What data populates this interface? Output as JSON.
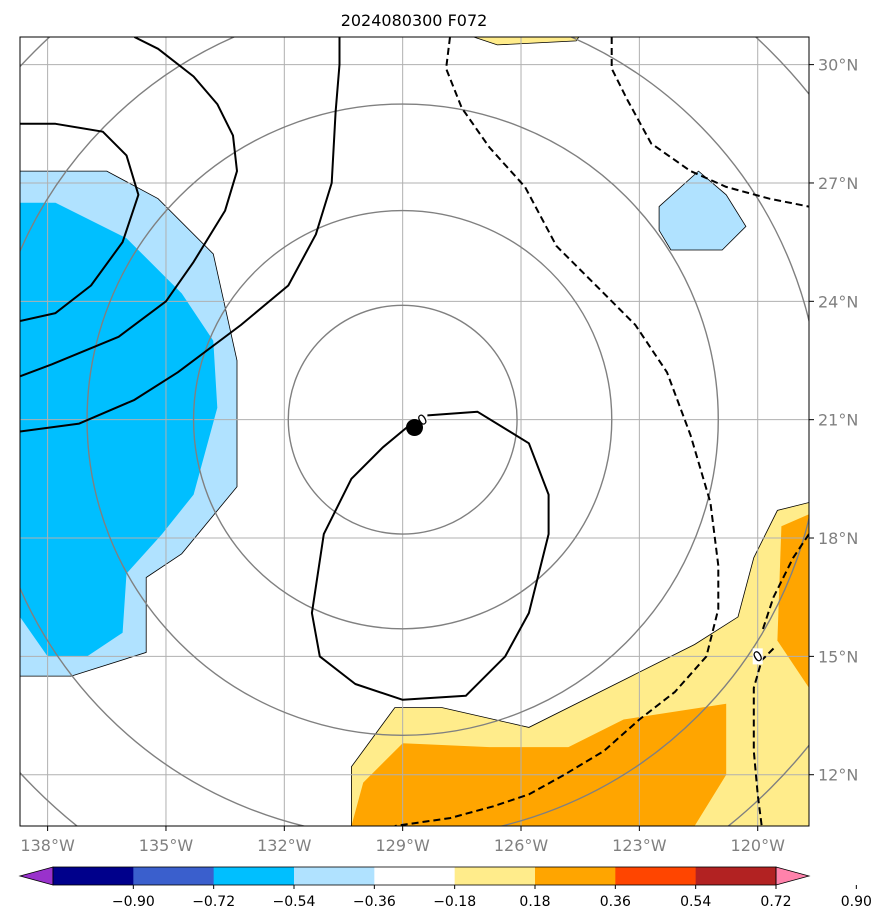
{
  "title": "2024080300 F072",
  "map": {
    "lon_range": [
      -138.7,
      -118.7
    ],
    "lat_range": [
      10.7,
      30.7
    ],
    "lon_ticks": [
      -138,
      -135,
      -132,
      -129,
      -126,
      -123,
      -120
    ],
    "lon_tick_labels": [
      "138°W",
      "135°W",
      "132°W",
      "129°W",
      "126°W",
      "123°W",
      "120°W"
    ],
    "lat_ticks": [
      12,
      15,
      18,
      21,
      24,
      27,
      30
    ],
    "lat_tick_labels": [
      "12°N",
      "15°N",
      "18°N",
      "21°N",
      "24°N",
      "27°N",
      "30°N"
    ],
    "grid": true,
    "center_marker": {
      "lon": -128.7,
      "lat": 20.8
    },
    "range_rings": {
      "center": {
        "lon": -129.0,
        "lat": 21.0
      },
      "radii_deg": [
        2.9,
        5.3,
        8.0,
        10.6,
        13.2
      ],
      "color": "#808080"
    },
    "contour_label": "0",
    "colorbar": {
      "tick_labels": [
        "−0.90",
        "−0.72",
        "−0.54",
        "−0.36",
        "−0.18",
        "0.18",
        "0.36",
        "0.54",
        "0.72",
        "0.90"
      ],
      "colors": [
        "#9932cc",
        "#00008b",
        "#3a5fcd",
        "#00bfff",
        "#b0e2ff",
        "#ffffff",
        "#ffec8b",
        "#ffa500",
        "#ff4500",
        "#b22222",
        "#ff82ab"
      ]
    }
  },
  "chart_data": {
    "type": "heatmap",
    "title": "2024080300 F072",
    "field_levels": [
      -0.9,
      -0.72,
      -0.54,
      -0.36,
      -0.18,
      0.18,
      0.36,
      0.54,
      0.72,
      0.9
    ],
    "shaded_regions": [
      {
        "level": "-0.36 to -0.18",
        "color": "#b0e2ff",
        "lonlat": [
          [
            -138.7,
            27.3
          ],
          [
            -136.5,
            27.3
          ],
          [
            -135.2,
            26.6
          ],
          [
            -133.8,
            25.2
          ],
          [
            -133.2,
            22.5
          ],
          [
            -133.2,
            19.3
          ],
          [
            -134.6,
            17.6
          ],
          [
            -135.5,
            17.0
          ],
          [
            -135.5,
            15.1
          ],
          [
            -137.4,
            14.5
          ],
          [
            -138.7,
            14.5
          ]
        ]
      },
      {
        "level": "-0.54 to -0.36",
        "color": "#00bfff",
        "lonlat": [
          [
            -138.7,
            26.5
          ],
          [
            -137.8,
            26.5
          ],
          [
            -136.0,
            25.6
          ],
          [
            -134.6,
            24.2
          ],
          [
            -133.8,
            23.0
          ],
          [
            -133.7,
            21.3
          ],
          [
            -134.3,
            19.1
          ],
          [
            -135.1,
            18.1
          ],
          [
            -136.0,
            17.1
          ],
          [
            -136.1,
            15.6
          ],
          [
            -137.0,
            15.0
          ],
          [
            -138.0,
            15.0
          ],
          [
            -138.7,
            16.0
          ]
        ]
      },
      {
        "level": "-0.36 to -0.18",
        "color": "#b0e2ff",
        "lonlat": [
          [
            -122.5,
            26.4
          ],
          [
            -121.5,
            27.3
          ],
          [
            -120.8,
            26.7
          ],
          [
            -120.3,
            25.9
          ],
          [
            -120.9,
            25.3
          ],
          [
            -122.2,
            25.3
          ],
          [
            -122.5,
            25.8
          ]
        ]
      },
      {
        "level": "0.18 to 0.36",
        "color": "#ffec8b",
        "lonlat": [
          [
            -130.3,
            10.7
          ],
          [
            -130.3,
            12.2
          ],
          [
            -129.2,
            13.7
          ],
          [
            -128.0,
            13.7
          ],
          [
            -125.8,
            13.2
          ],
          [
            -123.2,
            14.5
          ],
          [
            -121.6,
            15.3
          ],
          [
            -120.5,
            16.0
          ],
          [
            -120.1,
            17.5
          ],
          [
            -119.5,
            18.7
          ],
          [
            -118.7,
            18.9
          ],
          [
            -118.7,
            10.7
          ]
        ]
      },
      {
        "level": "0.36 to 0.54",
        "color": "#ffa500",
        "lonlat": [
          [
            -130.3,
            10.7
          ],
          [
            -130.0,
            11.8
          ],
          [
            -129.0,
            12.8
          ],
          [
            -126.8,
            12.7
          ],
          [
            -124.8,
            12.7
          ],
          [
            -123.4,
            13.4
          ],
          [
            -120.8,
            13.8
          ],
          [
            -120.8,
            12.0
          ],
          [
            -121.6,
            10.7
          ]
        ]
      },
      {
        "level": "0.36 to 0.54",
        "color": "#ffa500",
        "lonlat": [
          [
            -118.7,
            18.6
          ],
          [
            -119.4,
            18.3
          ],
          [
            -119.5,
            15.4
          ],
          [
            -118.7,
            14.2
          ]
        ]
      },
      {
        "level": "0.18 to 0.36",
        "color": "#ffec8b",
        "lonlat": [
          [
            -127.2,
            30.7
          ],
          [
            -126.0,
            30.7
          ],
          [
            -124.4,
            30.9
          ],
          [
            -124.6,
            30.6
          ],
          [
            -126.6,
            30.5
          ]
        ]
      }
    ],
    "contours": [
      {
        "style": "solid",
        "lonlat": [
          [
            -128.5,
            21.1
          ],
          [
            -127.1,
            21.2
          ],
          [
            -125.8,
            20.4
          ],
          [
            -125.3,
            19.1
          ],
          [
            -125.3,
            18.1
          ],
          [
            -125.8,
            16.1
          ],
          [
            -126.4,
            15.0
          ],
          [
            -127.4,
            14.0
          ],
          [
            -129.0,
            13.9
          ],
          [
            -130.2,
            14.3
          ],
          [
            -131.1,
            15.0
          ],
          [
            -131.3,
            16.1
          ],
          [
            -131.0,
            18.1
          ],
          [
            -130.3,
            19.5
          ],
          [
            -129.5,
            20.3
          ],
          [
            -128.9,
            20.8
          ]
        ]
      },
      {
        "style": "solid",
        "lonlat": [
          [
            -138.7,
            20.7
          ],
          [
            -137.2,
            20.9
          ],
          [
            -135.8,
            21.5
          ],
          [
            -134.7,
            22.2
          ],
          [
            -133.1,
            23.4
          ],
          [
            -131.9,
            24.4
          ],
          [
            -131.2,
            25.7
          ],
          [
            -130.8,
            27.0
          ],
          [
            -130.7,
            28.8
          ],
          [
            -130.6,
            30.0
          ],
          [
            -130.6,
            30.7
          ]
        ]
      },
      {
        "style": "solid",
        "lonlat": [
          [
            -138.7,
            22.1
          ],
          [
            -137.9,
            22.4
          ],
          [
            -136.2,
            23.1
          ],
          [
            -135.0,
            24.0
          ],
          [
            -134.3,
            25.0
          ],
          [
            -133.5,
            26.3
          ],
          [
            -133.2,
            27.3
          ],
          [
            -133.3,
            28.2
          ],
          [
            -133.7,
            29.0
          ],
          [
            -134.3,
            29.7
          ],
          [
            -135.2,
            30.4
          ],
          [
            -135.8,
            30.7
          ]
        ]
      },
      {
        "style": "solid",
        "lonlat": [
          [
            -138.7,
            23.5
          ],
          [
            -137.8,
            23.7
          ],
          [
            -136.9,
            24.4
          ],
          [
            -136.1,
            25.5
          ],
          [
            -135.7,
            26.7
          ],
          [
            -136.0,
            27.7
          ],
          [
            -136.6,
            28.3
          ],
          [
            -137.8,
            28.5
          ],
          [
            -138.7,
            28.5
          ]
        ]
      },
      {
        "style": "dashed",
        "lonlat": [
          [
            -127.8,
            30.7
          ],
          [
            -127.9,
            29.9
          ],
          [
            -127.5,
            28.9
          ],
          [
            -126.8,
            27.9
          ],
          [
            -125.9,
            26.9
          ],
          [
            -125.1,
            25.4
          ],
          [
            -124.1,
            24.4
          ],
          [
            -123.1,
            23.4
          ],
          [
            -122.3,
            22.2
          ],
          [
            -121.7,
            20.6
          ],
          [
            -121.2,
            18.9
          ],
          [
            -121.0,
            17.3
          ],
          [
            -121.0,
            16.2
          ],
          [
            -121.3,
            15.0
          ],
          [
            -122.1,
            14.1
          ],
          [
            -123.0,
            13.4
          ],
          [
            -123.9,
            12.6
          ],
          [
            -124.9,
            12.0
          ],
          [
            -125.8,
            11.5
          ],
          [
            -126.7,
            11.2
          ],
          [
            -127.8,
            10.9
          ],
          [
            -129.2,
            10.7
          ]
        ]
      },
      {
        "style": "dashed",
        "lonlat": [
          [
            -123.7,
            30.7
          ],
          [
            -123.7,
            29.9
          ],
          [
            -123.3,
            29.1
          ],
          [
            -122.7,
            28.0
          ],
          [
            -121.7,
            27.3
          ],
          [
            -120.8,
            26.9
          ],
          [
            -119.7,
            26.6
          ],
          [
            -118.7,
            26.4
          ]
        ]
      },
      {
        "style": "dashed",
        "lonlat": [
          [
            -119.6,
            15.2
          ],
          [
            -119.9,
            14.9
          ],
          [
            -120.1,
            14.2
          ],
          [
            -120.1,
            12.6
          ],
          [
            -120.0,
            11.5
          ],
          [
            -119.9,
            10.7
          ]
        ]
      },
      {
        "style": "dashed",
        "lonlat": [
          [
            -118.7,
            18.1
          ],
          [
            -119.1,
            17.5
          ],
          [
            -119.6,
            16.5
          ],
          [
            -119.9,
            15.6
          ]
        ]
      }
    ]
  }
}
